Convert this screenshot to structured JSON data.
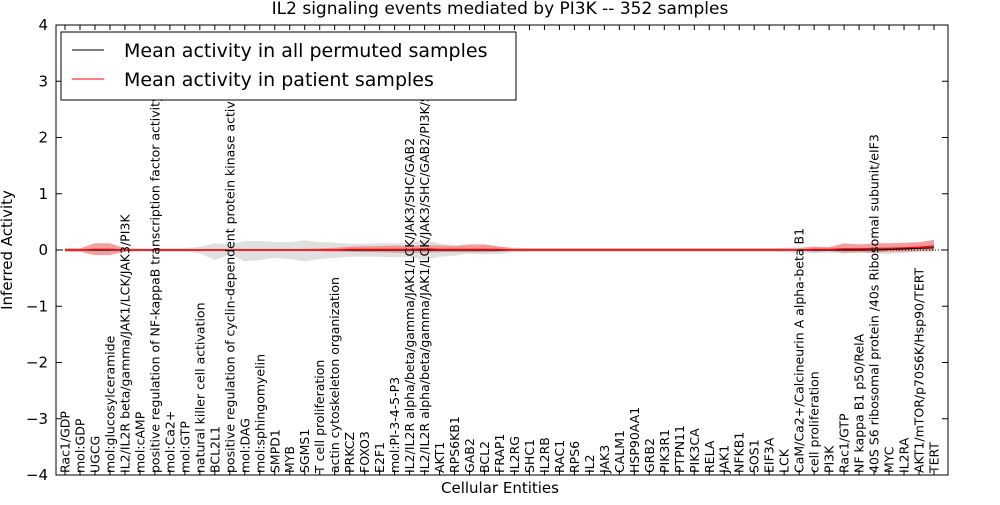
{
  "chart_data": {
    "type": "line",
    "title": "IL2 signaling events mediated by PI3K -- 352 samples",
    "xlabel": "Cellular Entities",
    "ylabel": "Inferred Activity",
    "ylim": [
      -4,
      4
    ],
    "yticks": [
      -4,
      -3,
      -2,
      -1,
      0,
      1,
      2,
      3,
      4
    ],
    "ytick_labels": [
      "−4",
      "−3",
      "−2",
      "−1",
      "0",
      "1",
      "2",
      "3",
      "4"
    ],
    "grid": false,
    "legend_position": "top-left",
    "categories": [
      "Rac1/GDP",
      "mol:GDP",
      "UGCG",
      "mol:glucosylceramide",
      "IL2/IL2R beta/gamma/JAK1/LCK/JAK3/PI3K",
      "mol:cAMP",
      "positive regulation of NF-kappaB transcription factor activity",
      "mol:Ca2+",
      "mol:GTP",
      "natural killer cell activation",
      "BCL2L1",
      "positive regulation of cyclin-dependent protein kinase activity",
      "mol:DAG",
      "mol:sphingomyelin",
      "SMPD1",
      "MYB",
      "SGMS1",
      "T cell proliferation",
      "actin cytoskeleton organization",
      "PRKCZ",
      "FOXO3",
      "E2F1",
      "mol:PI-3-4-5-P3",
      "IL2/IL2R alpha/beta/gamma/JAK1/LCK/JAK3/SHC/GAB2",
      "IL2/IL2R alpha/beta/gamma/JAK1/LCK/JAK3/SHC/GAB2/PI3K/SOS1",
      "AKT1",
      "RPS6KB1",
      "GAB2",
      "BCL2",
      "FRAP1",
      "IL2RG",
      "SHC1",
      "IL2RB",
      "RAC1",
      "RPS6",
      "IL2",
      "JAK3",
      "CALM1",
      "HSP90AA1",
      "GRB2",
      "PIK3R1",
      "PTPN11",
      "PIK3CA",
      "RELA",
      "JAK1",
      "NFKB1",
      "SOS1",
      "EIF3A",
      "LCK",
      "CaM/Ca2+/Calcineurin A alpha-beta B1",
      "cell proliferation",
      "PI3K",
      "Rac1/GTP",
      "NF kappa B1 p50/RelA",
      "40S S6 ribosomal protein /40s Ribosomal subunit/eIF3",
      "MYC",
      "IL2RA",
      "AKT1/mTOR/p70S6K/Hsp90/TERT",
      "TERT"
    ],
    "series": [
      {
        "name": "Mean activity in all permuted samples",
        "color": "#000000",
        "values": [
          0,
          0,
          0,
          0,
          0,
          0,
          0,
          0,
          0,
          0,
          0,
          0,
          0,
          0,
          0,
          0,
          0,
          0,
          0,
          0,
          0,
          0,
          0,
          0,
          0,
          0,
          0,
          0,
          0,
          0,
          0,
          0,
          0,
          0,
          0,
          0,
          0,
          0,
          0,
          0,
          0,
          0,
          0,
          0,
          0,
          0,
          0,
          0,
          0,
          0,
          0,
          0,
          0,
          0,
          0,
          0.01,
          0.02,
          0.03,
          0.04
        ],
        "band": {
          "color": "#bbbbbb",
          "lower": [
            -0.02,
            -0.02,
            -0.03,
            -0.03,
            -0.03,
            -0.02,
            -0.03,
            -0.03,
            -0.03,
            -0.06,
            -0.18,
            -0.08,
            -0.2,
            -0.18,
            -0.14,
            -0.16,
            -0.2,
            -0.16,
            -0.14,
            -0.12,
            -0.12,
            -0.12,
            -0.13,
            -0.12,
            -0.18,
            -0.12,
            -0.1,
            -0.06,
            -0.08,
            -0.07,
            -0.04,
            -0.03,
            -0.03,
            -0.03,
            -0.03,
            -0.03,
            -0.03,
            -0.03,
            -0.03,
            -0.03,
            -0.03,
            -0.03,
            -0.03,
            -0.03,
            -0.03,
            -0.03,
            -0.03,
            -0.03,
            -0.04,
            -0.05,
            -0.06,
            -0.05,
            -0.06,
            -0.05,
            -0.06,
            -0.07,
            -0.05,
            -0.03,
            -0.02
          ],
          "upper": [
            0.02,
            0.02,
            0.03,
            0.03,
            0.03,
            0.02,
            0.03,
            0.03,
            0.03,
            0.06,
            0.12,
            0.1,
            0.16,
            0.16,
            0.14,
            0.14,
            0.17,
            0.14,
            0.13,
            0.11,
            0.11,
            0.12,
            0.12,
            0.12,
            0.18,
            0.11,
            0.09,
            0.06,
            0.08,
            0.06,
            0.04,
            0.03,
            0.03,
            0.03,
            0.03,
            0.03,
            0.03,
            0.03,
            0.03,
            0.03,
            0.03,
            0.03,
            0.03,
            0.03,
            0.03,
            0.03,
            0.03,
            0.03,
            0.04,
            0.05,
            0.06,
            0.05,
            0.06,
            0.06,
            0.06,
            0.07,
            0.08,
            0.1,
            0.12
          ]
        }
      },
      {
        "name": "Mean activity in patient samples",
        "color": "#ff0000",
        "values": [
          0,
          0,
          0.01,
          0.01,
          0,
          0,
          0,
          0,
          0,
          0,
          0,
          0,
          0,
          0,
          0,
          0,
          0,
          0,
          0,
          0.01,
          0.01,
          0.01,
          0.01,
          0.01,
          0.02,
          0.01,
          0.01,
          0.01,
          0.01,
          0.01,
          0,
          0,
          0,
          0,
          0,
          0,
          0,
          0,
          0,
          0,
          0,
          0,
          0,
          0,
          0,
          0,
          0,
          0,
          0,
          0,
          0.01,
          0.01,
          0.02,
          0.02,
          0.03,
          0.03,
          0.04,
          0.05,
          0.07
        ],
        "band": {
          "color": "#f08080",
          "lower": [
            -0.03,
            -0.03,
            -0.09,
            -0.09,
            -0.03,
            -0.02,
            -0.02,
            -0.02,
            -0.02,
            -0.02,
            -0.02,
            -0.02,
            -0.02,
            -0.02,
            -0.02,
            -0.02,
            -0.02,
            -0.02,
            -0.03,
            -0.03,
            -0.04,
            -0.04,
            -0.05,
            -0.05,
            -0.05,
            -0.04,
            -0.04,
            -0.04,
            -0.04,
            -0.03,
            -0.02,
            -0.02,
            -0.02,
            -0.02,
            -0.02,
            -0.02,
            -0.02,
            -0.02,
            -0.02,
            -0.02,
            -0.02,
            -0.02,
            -0.02,
            -0.02,
            -0.02,
            -0.02,
            -0.02,
            -0.02,
            -0.02,
            -0.02,
            -0.03,
            -0.02,
            -0.05,
            -0.04,
            -0.05,
            -0.03,
            -0.03,
            -0.02,
            -0.02
          ],
          "upper": [
            0.03,
            0.03,
            0.12,
            0.12,
            0.03,
            0.02,
            0.02,
            0.02,
            0.02,
            0.02,
            0.02,
            0.02,
            0.02,
            0.02,
            0.02,
            0.02,
            0.02,
            0.03,
            0.04,
            0.06,
            0.07,
            0.07,
            0.08,
            0.07,
            0.09,
            0.08,
            0.07,
            0.1,
            0.1,
            0.06,
            0.03,
            0.03,
            0.03,
            0.03,
            0.03,
            0.03,
            0.03,
            0.03,
            0.03,
            0.03,
            0.03,
            0.03,
            0.03,
            0.03,
            0.03,
            0.03,
            0.03,
            0.03,
            0.03,
            0.03,
            0.06,
            0.05,
            0.12,
            0.1,
            0.12,
            0.12,
            0.13,
            0.14,
            0.18
          ]
        }
      }
    ],
    "legend": [
      {
        "label": "Mean activity in all permuted samples",
        "color": "#000000"
      },
      {
        "label": "Mean activity in patient samples",
        "color": "#ff0000"
      }
    ]
  }
}
